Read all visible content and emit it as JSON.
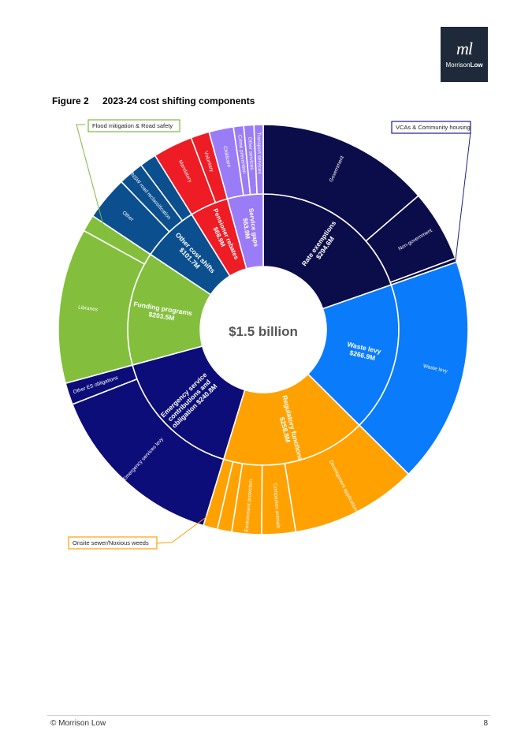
{
  "logo": {
    "mark": "ml",
    "brand_part1": "Morrison",
    "brand_part2": "Low"
  },
  "figure": {
    "label": "Figure 2",
    "title": "2023-24 cost shifting components"
  },
  "footer": {
    "left": "© Morrison Low",
    "page_number": "8"
  },
  "chart_data": {
    "type": "sunburst",
    "center_label": "$1.5 billion",
    "inner": [
      {
        "label": "Rate exemptions $294.6M",
        "value": 294.6,
        "color": "#0b0c4a"
      },
      {
        "label": "Waste levy $266.9M",
        "value": 266.9,
        "color": "#0a7bfa"
      },
      {
        "label": "Regulatory functions $258.8M",
        "value": 258.8,
        "color": "#ffa100"
      },
      {
        "label": "Emergency service contributions and obligation $240.8M",
        "value": 240.8,
        "color": "#0c0d78"
      },
      {
        "label": "Funding programs $203.5M",
        "value": 203.5,
        "color": "#83bf3d"
      },
      {
        "label": "Other cost shifts $101.7M",
        "value": 101.7,
        "color": "#0b4f8f"
      },
      {
        "label": "Pensioner rebates $68.9M",
        "value": 68.9,
        "color": "#ee1c25"
      },
      {
        "label": "Service gaps $63.9M",
        "value": 63.9,
        "color": "#9b7cf7"
      }
    ],
    "outer": [
      {
        "label": "Government",
        "value": 205,
        "parent": 0
      },
      {
        "label": "Non-government",
        "value": 85,
        "parent": 0
      },
      {
        "label": "",
        "value": 4.6,
        "parent": 0
      },
      {
        "label": "Waste levy",
        "value": 266.9,
        "parent": 1
      },
      {
        "label": "Development applications",
        "value": 150,
        "parent": 2
      },
      {
        "label": "Companion animals",
        "value": 40,
        "parent": 2
      },
      {
        "label": "Environment protection",
        "value": 35,
        "parent": 2
      },
      {
        "label": "",
        "value": 17,
        "parent": 2
      },
      {
        "label": "",
        "value": 16.8,
        "parent": 2
      },
      {
        "label": "Emergency services levy",
        "value": 215,
        "parent": 3
      },
      {
        "label": "Other ES obligations",
        "value": 25.8,
        "parent": 3
      },
      {
        "label": "Libraries",
        "value": 183.5,
        "parent": 4
      },
      {
        "label": "",
        "value": 20,
        "parent": 4
      },
      {
        "label": "Other",
        "value": 52,
        "parent": 5
      },
      {
        "label": "TfNSW road reclassification",
        "value": 30,
        "parent": 5
      },
      {
        "label": "",
        "value": 19.7,
        "parent": 5
      },
      {
        "label": "Mandatory",
        "value": 47,
        "parent": 6
      },
      {
        "label": "Voluntary",
        "value": 21.9,
        "parent": 6
      },
      {
        "label": "Childcare",
        "value": 29,
        "parent": 7
      },
      {
        "label": "Crime prevention",
        "value": 12,
        "parent": 7
      },
      {
        "label": "Other services",
        "value": 12,
        "parent": 7
      },
      {
        "label": "Transport services",
        "value": 10.9,
        "parent": 7
      }
    ],
    "callouts": [
      {
        "text": "Flood mitigation & Road safety"
      },
      {
        "text": "VCAs & Community housing"
      },
      {
        "text": "Onsite sewer/Noxious weeds"
      }
    ]
  }
}
